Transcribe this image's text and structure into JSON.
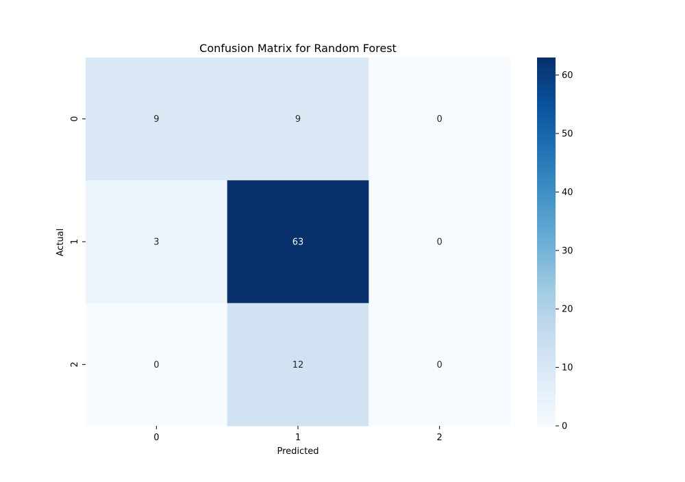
{
  "chart_data": {
    "type": "heatmap",
    "title": "Confusion Matrix for Random Forest",
    "xlabel": "Predicted",
    "ylabel": "Actual",
    "x_categories": [
      "0",
      "1",
      "2"
    ],
    "y_categories": [
      "0",
      "1",
      "2"
    ],
    "values": [
      [
        9,
        9,
        0
      ],
      [
        3,
        63,
        0
      ],
      [
        0,
        12,
        0
      ]
    ],
    "colormap": "Blues",
    "colorbar": {
      "min": 0,
      "max": 63,
      "ticks": [
        0,
        10,
        20,
        30,
        40,
        50,
        60
      ]
    },
    "annotations": true,
    "grid": false
  }
}
